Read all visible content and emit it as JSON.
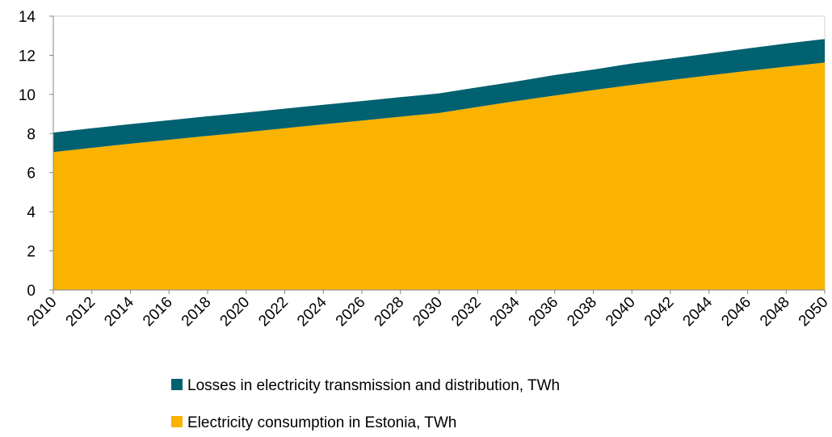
{
  "chart_data": {
    "type": "area",
    "stacked": true,
    "x": [
      2010,
      2012,
      2014,
      2016,
      2018,
      2020,
      2022,
      2024,
      2026,
      2028,
      2030,
      2032,
      2034,
      2036,
      2038,
      2040,
      2042,
      2044,
      2046,
      2048,
      2050
    ],
    "series": [
      {
        "name": "Electricity consumption in Estonia, TWh",
        "color": "#F9B300",
        "values": [
          7.05,
          7.27,
          7.48,
          7.68,
          7.88,
          8.07,
          8.27,
          8.47,
          8.66,
          8.86,
          9.05,
          9.36,
          9.66,
          9.94,
          10.22,
          10.48,
          10.73,
          10.97,
          11.2,
          11.42,
          11.63
        ]
      },
      {
        "name": "Losses in electricity transmission and distribution, TWh",
        "color": "#006170",
        "values": [
          1.0,
          1.0,
          1.0,
          1.0,
          1.0,
          1.0,
          1.0,
          1.0,
          1.0,
          1.0,
          1.0,
          1.0,
          1.0,
          1.05,
          1.05,
          1.1,
          1.1,
          1.12,
          1.15,
          1.18,
          1.2
        ]
      }
    ],
    "ylim": [
      0,
      14
    ],
    "yticks": [
      0,
      2,
      4,
      6,
      8,
      10,
      12,
      14
    ],
    "title": "",
    "xlabel": "",
    "ylabel": "",
    "grid": false,
    "legend_position": "bottom"
  }
}
